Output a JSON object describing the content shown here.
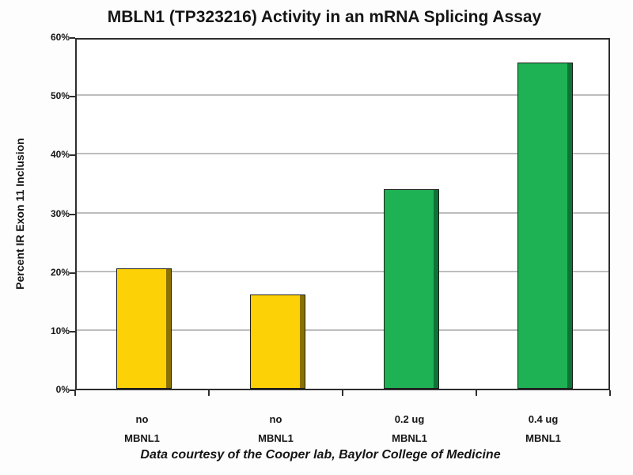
{
  "chart_data": {
    "type": "bar",
    "title": "MBLN1 (TP323216) Activity in an mRNA Splicing Assay",
    "ylabel": "Percent IR Exon 11 Inclusion",
    "xlabel": "",
    "caption": "Data courtesy of the Cooper lab, Baylor College of Medicine",
    "categories": [
      "no\nMBNL1",
      "no\nMBNL1",
      "0.2 ug\nMBNL1",
      "0.4 ug\nMBNL1"
    ],
    "values": [
      20.5,
      16,
      34,
      55.5
    ],
    "value_unit": "%",
    "ylim": [
      0,
      60
    ],
    "ytick_step": 10,
    "ytick_labels": [
      "0%",
      "10%",
      "20%",
      "30%",
      "40%",
      "50%",
      "60%"
    ],
    "grid": true,
    "legend_position": "none",
    "bar_fill_colors": [
      "#FCD106",
      "#FCD106",
      "#1FB254",
      "#1FB254"
    ],
    "bar_shade_colors": [
      "#8A7103",
      "#8A7103",
      "#0C7436",
      "#0C7436"
    ],
    "bar_outline_color": "#1c1c1c",
    "colors": {
      "grid": "#bdbdbd",
      "axis_box": "#2e2e2e",
      "text": "#151515",
      "plot_background": "#ffffff"
    }
  }
}
